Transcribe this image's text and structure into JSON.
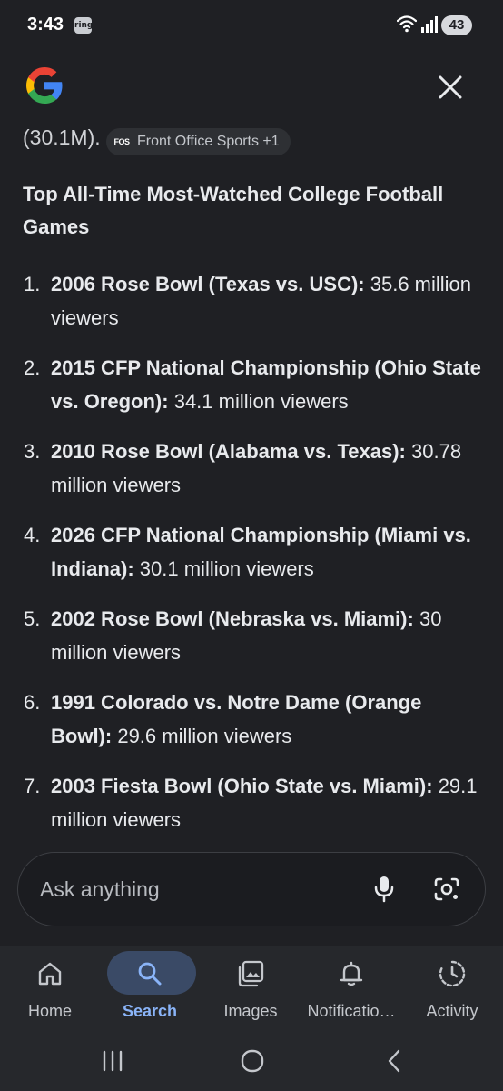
{
  "status_bar": {
    "time": "3:43",
    "ring_badge": "ring",
    "battery": "43"
  },
  "header": {
    "logo": "google-g-logo",
    "close_icon": "close-icon"
  },
  "content": {
    "clipped_text": "(30.1M).",
    "source_chip": {
      "logo_text": "FOS",
      "label": "Front Office Sports +1"
    },
    "heading": "Top All-Time Most-Watched College Football Games",
    "items": [
      {
        "number": "1.",
        "title": "2006 Rose Bowl (Texas vs. USC):",
        "detail": "35.6 million viewers"
      },
      {
        "number": "2.",
        "title": "2015 CFP National Championship (Ohio State vs. Oregon):",
        "detail": "34.1 million viewers"
      },
      {
        "number": "3.",
        "title": "2010 Rose Bowl (Alabama vs. Texas):",
        "detail": "30.78 million viewers"
      },
      {
        "number": "4.",
        "title": "2026 CFP National Championship (Miami vs. Indiana):",
        "detail": "30.1 million viewers"
      },
      {
        "number": "5.",
        "title": "2002 Rose Bowl (Nebraska vs. Miami):",
        "detail": "30 million viewers"
      },
      {
        "number": "6.",
        "title": "1991 Colorado vs. Notre Dame (Orange Bowl):",
        "detail": "29.6 million viewers"
      },
      {
        "number": "7.",
        "title": "2003 Fiesta Bowl (Ohio State vs. Miami):",
        "detail": "29.1 million viewers"
      }
    ]
  },
  "ask_box": {
    "placeholder": "Ask anything",
    "mic_icon": "microphone-icon",
    "lens_icon": "camera-lens-icon"
  },
  "bottom_nav": {
    "items": [
      {
        "label": "Home",
        "icon": "home-icon"
      },
      {
        "label": "Search",
        "icon": "search-icon",
        "active": true
      },
      {
        "label": "Images",
        "icon": "images-icon"
      },
      {
        "label": "Notificatio…",
        "icon": "bell-icon"
      },
      {
        "label": "Activity",
        "icon": "activity-icon"
      }
    ]
  },
  "colors": {
    "background": "#1f2024",
    "nav_background": "#26282c",
    "active_accent": "#8ab4f8",
    "active_pill": "#3a4a66"
  }
}
